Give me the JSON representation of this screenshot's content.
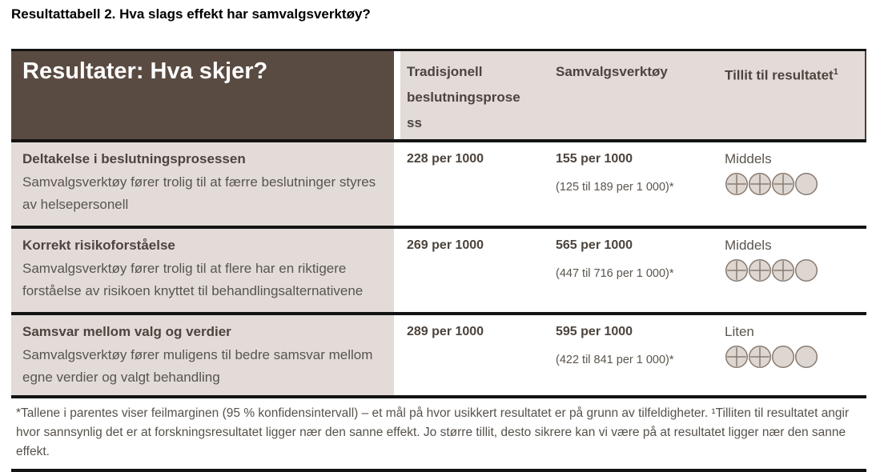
{
  "title": "Resultattabell 2. Hva slags effekt har samvalgsverktøy?",
  "header": {
    "results_label": "Resultater: Hva skjer?",
    "col_traditional_lines": [
      "Tradisjonell",
      "beslutningsprose",
      "ss"
    ],
    "col_tool": "Samvalgsverktøy",
    "col_certainty": "Tillit til resultatet",
    "col_certainty_sup": "1"
  },
  "rows": [
    {
      "outcome_title": "Deltakelse i beslutningsprosessen",
      "outcome_desc": "Samvalgsverktøy fører trolig til at færre beslutninger styres av helsepersonell",
      "traditional": "228 per 1000",
      "tool": "155 per 1000",
      "ci": "(125 til 189 per 1 000)*",
      "confidence_label": "Middels",
      "confidence_filled": 3,
      "confidence_total": 4
    },
    {
      "outcome_title": "Korrekt risikoforståelse",
      "outcome_desc": "Samvalgsverktøy fører trolig til at flere har en riktigere forståelse av risikoen knyttet til behandlingsalternativene",
      "traditional": "269 per 1000",
      "tool": "565 per 1000",
      "ci": "(447 til 716 per 1 000)*",
      "confidence_label": "Middels",
      "confidence_filled": 3,
      "confidence_total": 4
    },
    {
      "outcome_title": "Samsvar mellom valg og verdier",
      "outcome_desc": "Samvalgsverktøy fører muligens til bedre samsvar mellom egne verdier og valgt behandling",
      "traditional": "289 per 1000",
      "tool": "595 per 1000",
      "ci": "(422 til 841 per 1 000)*",
      "confidence_label": "Liten",
      "confidence_filled": 2,
      "confidence_total": 4
    }
  ],
  "footnote": "*Tallene i parentes viser feilmarginen (95 % konfidensintervall) – et mål på hvor usikkert resultatet er på grunn av tilfeldigheter. ¹Tilliten til resultatet angir hvor sannsynlig det er at forskningsresultatet ligger nær den sanne effekt. Jo større tillit, desto sikrere kan vi være på at resultatet ligger nær den sanne effekt.",
  "colors": {
    "header_brown": "#5a4b42",
    "beige": "#e2dbd7",
    "line_black": "#131313",
    "text_dark": "#4c443d",
    "text_body": "#5a544d",
    "circle_fill": "#ded6d0",
    "circle_stroke": "#877b72"
  }
}
